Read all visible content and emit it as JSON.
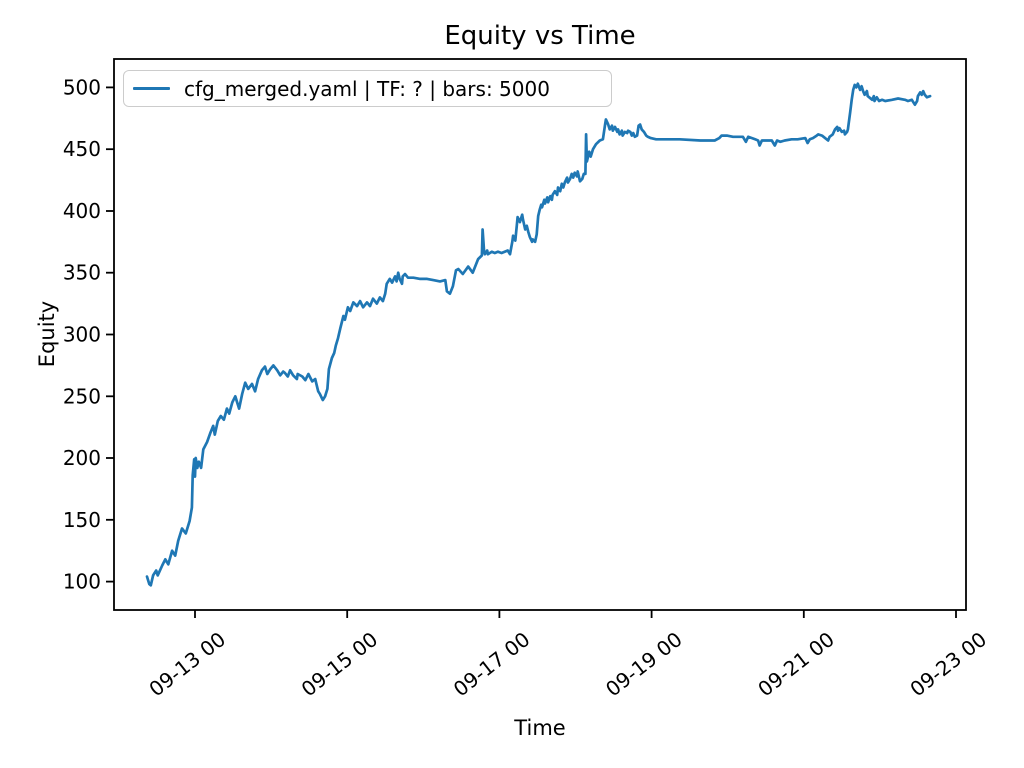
{
  "figure": {
    "title": "Equity vs Time",
    "xlabel": "Time",
    "ylabel": "Equity"
  },
  "legend": {
    "label": "cfg_merged.yaml | TF: ? | bars: 5000",
    "position": "upper left"
  },
  "colors": {
    "line": "#1f77b4",
    "axes": "#000000",
    "legend_border": "#cccccc",
    "background": "#ffffff"
  },
  "chart_data": {
    "type": "line",
    "title": "Equity vs Time",
    "xlabel": "Time",
    "ylabel": "Equity",
    "legend_entries": [
      "cfg_merged.yaml | TF: ? | bars: 5000"
    ],
    "legend_position": "upper left",
    "grid": false,
    "line_color": "#1f77b4",
    "x_unit": "days since 09-12 00:00 (month-day)",
    "xlim": [
      -0.064,
      11.132
    ],
    "ylim": [
      77,
      523
    ],
    "x_ticks": [
      {
        "pos": 1,
        "label": "09-13 00"
      },
      {
        "pos": 3,
        "label": "09-15 00"
      },
      {
        "pos": 5,
        "label": "09-17 00"
      },
      {
        "pos": 7,
        "label": "09-19 00"
      },
      {
        "pos": 9,
        "label": "09-21 00"
      },
      {
        "pos": 11,
        "label": "09-23 00"
      }
    ],
    "y_ticks": [
      {
        "pos": 100,
        "label": "100"
      },
      {
        "pos": 150,
        "label": "150"
      },
      {
        "pos": 200,
        "label": "200"
      },
      {
        "pos": 250,
        "label": "250"
      },
      {
        "pos": 300,
        "label": "300"
      },
      {
        "pos": 350,
        "label": "350"
      },
      {
        "pos": 400,
        "label": "400"
      },
      {
        "pos": 450,
        "label": "450"
      },
      {
        "pos": 500,
        "label": "500"
      }
    ],
    "series": [
      {
        "name": "cfg_merged.yaml | TF: ? | bars: 5000",
        "points": [
          [
            0.37,
            104
          ],
          [
            0.4,
            98
          ],
          [
            0.42,
            97
          ],
          [
            0.45,
            105
          ],
          [
            0.49,
            109
          ],
          [
            0.51,
            105
          ],
          [
            0.57,
            113
          ],
          [
            0.61,
            118
          ],
          [
            0.65,
            114
          ],
          [
            0.7,
            125
          ],
          [
            0.74,
            121
          ],
          [
            0.78,
            133
          ],
          [
            0.83,
            143
          ],
          [
            0.88,
            139
          ],
          [
            0.93,
            149
          ],
          [
            0.96,
            160
          ],
          [
            0.97,
            186
          ],
          [
            0.99,
            199
          ],
          [
            1.0,
            185
          ],
          [
            1.01,
            200
          ],
          [
            1.03,
            192
          ],
          [
            1.05,
            197
          ],
          [
            1.08,
            192
          ],
          [
            1.11,
            207
          ],
          [
            1.16,
            213
          ],
          [
            1.2,
            220
          ],
          [
            1.24,
            226
          ],
          [
            1.26,
            219
          ],
          [
            1.3,
            230
          ],
          [
            1.34,
            234
          ],
          [
            1.38,
            231
          ],
          [
            1.42,
            240
          ],
          [
            1.45,
            236
          ],
          [
            1.49,
            245
          ],
          [
            1.53,
            250
          ],
          [
            1.55,
            246
          ],
          [
            1.58,
            240
          ],
          [
            1.62,
            252
          ],
          [
            1.66,
            261
          ],
          [
            1.7,
            256
          ],
          [
            1.75,
            260
          ],
          [
            1.79,
            254
          ],
          [
            1.83,
            264
          ],
          [
            1.88,
            271
          ],
          [
            1.92,
            274
          ],
          [
            1.95,
            268
          ],
          [
            1.99,
            272
          ],
          [
            2.03,
            275
          ],
          [
            2.08,
            271
          ],
          [
            2.12,
            267
          ],
          [
            2.16,
            270
          ],
          [
            2.18,
            269
          ],
          [
            2.22,
            266
          ],
          [
            2.25,
            271
          ],
          [
            2.29,
            267
          ],
          [
            2.34,
            264
          ],
          [
            2.35,
            268
          ],
          [
            2.41,
            266
          ],
          [
            2.45,
            263
          ],
          [
            2.49,
            268
          ],
          [
            2.54,
            262
          ],
          [
            2.58,
            264
          ],
          [
            2.6,
            259
          ],
          [
            2.62,
            254
          ],
          [
            2.64,
            252
          ],
          [
            2.68,
            247
          ],
          [
            2.71,
            250
          ],
          [
            2.74,
            256
          ],
          [
            2.76,
            272
          ],
          [
            2.8,
            281
          ],
          [
            2.83,
            285
          ],
          [
            2.85,
            291
          ],
          [
            2.88,
            297
          ],
          [
            2.91,
            305
          ],
          [
            2.95,
            315
          ],
          [
            2.97,
            312
          ],
          [
            3.01,
            322
          ],
          [
            3.04,
            319
          ],
          [
            3.08,
            326
          ],
          [
            3.13,
            323
          ],
          [
            3.17,
            327
          ],
          [
            3.21,
            322
          ],
          [
            3.26,
            326
          ],
          [
            3.3,
            323
          ],
          [
            3.34,
            329
          ],
          [
            3.39,
            325
          ],
          [
            3.43,
            330
          ],
          [
            3.47,
            327
          ],
          [
            3.5,
            333
          ],
          [
            3.52,
            341
          ],
          [
            3.56,
            345
          ],
          [
            3.59,
            342
          ],
          [
            3.63,
            347
          ],
          [
            3.65,
            343
          ],
          [
            3.67,
            350
          ],
          [
            3.69,
            345
          ],
          [
            3.72,
            341
          ],
          [
            3.73,
            347
          ],
          [
            3.76,
            349
          ],
          [
            3.8,
            346
          ],
          [
            3.87,
            346
          ],
          [
            3.96,
            345
          ],
          [
            4.05,
            345
          ],
          [
            4.13,
            344
          ],
          [
            4.22,
            343
          ],
          [
            4.29,
            344
          ],
          [
            4.31,
            335
          ],
          [
            4.35,
            333
          ],
          [
            4.39,
            339
          ],
          [
            4.43,
            352
          ],
          [
            4.46,
            353
          ],
          [
            4.52,
            349
          ],
          [
            4.59,
            355
          ],
          [
            4.65,
            350
          ],
          [
            4.72,
            361
          ],
          [
            4.77,
            364
          ],
          [
            4.78,
            385
          ],
          [
            4.8,
            367
          ],
          [
            4.81,
            365
          ],
          [
            4.84,
            368
          ],
          [
            4.85,
            365
          ],
          [
            4.9,
            367
          ],
          [
            4.94,
            366
          ],
          [
            4.98,
            367
          ],
          [
            5.03,
            366
          ],
          [
            5.07,
            367
          ],
          [
            5.11,
            368
          ],
          [
            5.14,
            365
          ],
          [
            5.17,
            375
          ],
          [
            5.18,
            380
          ],
          [
            5.21,
            376
          ],
          [
            5.23,
            389
          ],
          [
            5.24,
            395
          ],
          [
            5.27,
            391
          ],
          [
            5.3,
            397
          ],
          [
            5.31,
            393
          ],
          [
            5.34,
            385
          ],
          [
            5.36,
            388
          ],
          [
            5.38,
            383
          ],
          [
            5.4,
            379
          ],
          [
            5.43,
            375
          ],
          [
            5.44,
            377
          ],
          [
            5.47,
            375
          ],
          [
            5.49,
            381
          ],
          [
            5.51,
            396
          ],
          [
            5.53,
            401
          ],
          [
            5.55,
            405
          ],
          [
            5.56,
            403
          ],
          [
            5.59,
            409
          ],
          [
            5.6,
            406
          ],
          [
            5.63,
            411
          ],
          [
            5.64,
            407
          ],
          [
            5.67,
            412
          ],
          [
            5.69,
            409
          ],
          [
            5.7,
            413
          ],
          [
            5.73,
            416
          ],
          [
            5.76,
            413
          ],
          [
            5.77,
            419
          ],
          [
            5.8,
            416
          ],
          [
            5.82,
            422
          ],
          [
            5.84,
            419
          ],
          [
            5.86,
            423
          ],
          [
            5.89,
            427
          ],
          [
            5.9,
            423
          ],
          [
            5.93,
            426
          ],
          [
            5.95,
            430
          ],
          [
            5.97,
            427
          ],
          [
            5.99,
            431
          ],
          [
            6.02,
            428
          ],
          [
            6.03,
            432
          ],
          [
            6.06,
            424
          ],
          [
            6.09,
            426
          ],
          [
            6.11,
            430
          ],
          [
            6.13,
            430
          ],
          [
            6.14,
            462
          ],
          [
            6.15,
            440
          ],
          [
            6.18,
            448
          ],
          [
            6.2,
            444
          ],
          [
            6.23,
            450
          ],
          [
            6.27,
            454
          ],
          [
            6.32,
            457
          ],
          [
            6.36,
            458
          ],
          [
            6.39,
            470
          ],
          [
            6.4,
            474
          ],
          [
            6.43,
            470
          ],
          [
            6.45,
            466
          ],
          [
            6.48,
            469
          ],
          [
            6.49,
            465
          ],
          [
            6.52,
            468
          ],
          [
            6.55,
            464
          ],
          [
            6.56,
            466
          ],
          [
            6.58,
            462
          ],
          [
            6.61,
            465
          ],
          [
            6.62,
            461
          ],
          [
            6.65,
            464
          ],
          [
            6.68,
            463
          ],
          [
            6.69,
            465
          ],
          [
            6.72,
            464
          ],
          [
            6.74,
            461
          ],
          [
            6.76,
            463
          ],
          [
            6.78,
            460
          ],
          [
            6.81,
            461
          ],
          [
            6.83,
            469
          ],
          [
            6.85,
            470
          ],
          [
            6.87,
            466
          ],
          [
            6.9,
            464
          ],
          [
            6.93,
            461
          ],
          [
            6.95,
            460
          ],
          [
            6.99,
            459
          ],
          [
            7.06,
            458
          ],
          [
            7.18,
            458
          ],
          [
            7.37,
            458
          ],
          [
            7.64,
            457
          ],
          [
            7.83,
            457
          ],
          [
            7.89,
            459
          ],
          [
            7.92,
            461
          ],
          [
            7.99,
            461
          ],
          [
            8.07,
            460
          ],
          [
            8.16,
            460
          ],
          [
            8.2,
            460
          ],
          [
            8.24,
            456
          ],
          [
            8.27,
            460
          ],
          [
            8.32,
            459
          ],
          [
            8.36,
            458
          ],
          [
            8.4,
            457
          ],
          [
            8.42,
            453
          ],
          [
            8.45,
            457
          ],
          [
            8.5,
            457
          ],
          [
            8.58,
            457
          ],
          [
            8.62,
            453
          ],
          [
            8.65,
            457
          ],
          [
            8.69,
            456
          ],
          [
            8.75,
            457
          ],
          [
            8.84,
            458
          ],
          [
            8.92,
            458
          ],
          [
            9.02,
            459
          ],
          [
            9.05,
            455
          ],
          [
            9.08,
            458
          ],
          [
            9.12,
            459
          ],
          [
            9.17,
            461
          ],
          [
            9.19,
            462
          ],
          [
            9.24,
            461
          ],
          [
            9.28,
            459
          ],
          [
            9.32,
            457
          ],
          [
            9.34,
            460
          ],
          [
            9.38,
            462
          ],
          [
            9.41,
            466
          ],
          [
            9.44,
            468
          ],
          [
            9.45,
            465
          ],
          [
            9.47,
            467
          ],
          [
            9.5,
            464
          ],
          [
            9.53,
            465
          ],
          [
            9.54,
            462
          ],
          [
            9.57,
            464
          ],
          [
            9.58,
            466
          ],
          [
            9.61,
            480
          ],
          [
            9.63,
            490
          ],
          [
            9.65,
            498
          ],
          [
            9.67,
            502
          ],
          [
            9.69,
            500
          ],
          [
            9.71,
            503
          ],
          [
            9.74,
            498
          ],
          [
            9.76,
            501
          ],
          [
            9.78,
            497
          ],
          [
            9.8,
            494
          ],
          [
            9.83,
            497
          ],
          [
            9.84,
            493
          ],
          [
            9.9,
            490
          ],
          [
            9.92,
            493
          ],
          [
            9.93,
            489
          ],
          [
            9.96,
            492
          ],
          [
            9.99,
            489
          ],
          [
            10.03,
            490
          ],
          [
            10.07,
            489
          ],
          [
            10.16,
            490
          ],
          [
            10.24,
            491
          ],
          [
            10.33,
            490
          ],
          [
            10.37,
            489
          ],
          [
            10.42,
            490
          ],
          [
            10.46,
            486
          ],
          [
            10.49,
            489
          ],
          [
            10.5,
            493
          ],
          [
            10.53,
            496
          ],
          [
            10.55,
            494
          ],
          [
            10.57,
            497
          ],
          [
            10.59,
            494
          ],
          [
            10.62,
            492
          ],
          [
            10.66,
            493
          ]
        ]
      }
    ]
  }
}
